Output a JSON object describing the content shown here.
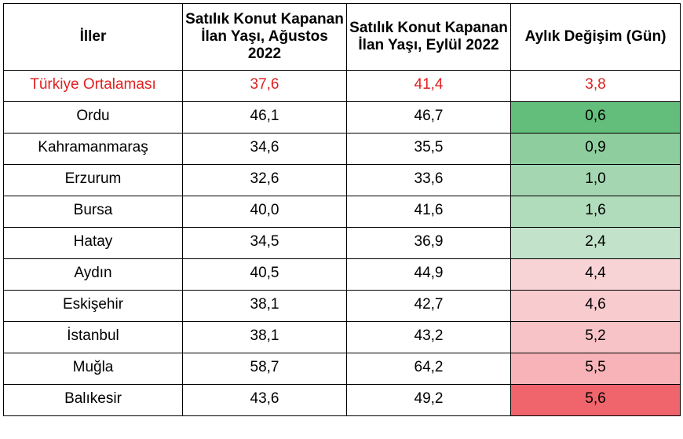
{
  "table": {
    "headers": [
      "İller",
      "Satılık Konut Kapanan İlan Yaşı, Ağustos 2022",
      "Satılık Konut Kapanan İlan Yaşı, Eylül 2022",
      "Aylık Değişim (Gün)"
    ],
    "average_row": {
      "city": "Türkiye Ortalaması",
      "aug": "37,6",
      "sep": "41,4",
      "change": "3,8",
      "color": "#e02020"
    },
    "rows": [
      {
        "city": "Ordu",
        "aug": "46,1",
        "sep": "46,7",
        "change": "0,6",
        "fill": "#63be7b"
      },
      {
        "city": "Kahramanmaraş",
        "aug": "34,6",
        "sep": "35,5",
        "change": "0,9",
        "fill": "#8ecd9e"
      },
      {
        "city": "Erzurum",
        "aug": "32,6",
        "sep": "33,6",
        "change": "1,0",
        "fill": "#a4d7b1"
      },
      {
        "city": "Bursa",
        "aug": "40,0",
        "sep": "41,6",
        "change": "1,6",
        "fill": "#b1dcbb"
      },
      {
        "city": "Hatay",
        "aug": "34,5",
        "sep": "36,9",
        "change": "2,4",
        "fill": "#c2e3ca"
      },
      {
        "city": "Aydın",
        "aug": "40,5",
        "sep": "44,9",
        "change": "4,4",
        "fill": "#f8d3d6"
      },
      {
        "city": "Eskişehir",
        "aug": "38,1",
        "sep": "42,7",
        "change": "4,6",
        "fill": "#f8cbce"
      },
      {
        "city": "İstanbul",
        "aug": "38,1",
        "sep": "43,2",
        "change": "5,2",
        "fill": "#f8c3c6"
      },
      {
        "city": "Muğla",
        "aug": "58,7",
        "sep": "64,2",
        "change": "5,5",
        "fill": "#f7b3b7"
      },
      {
        "city": "Balıkesir",
        "aug": "43,6",
        "sep": "49,2",
        "change": "5,6",
        "fill": "#f0646c"
      }
    ]
  }
}
